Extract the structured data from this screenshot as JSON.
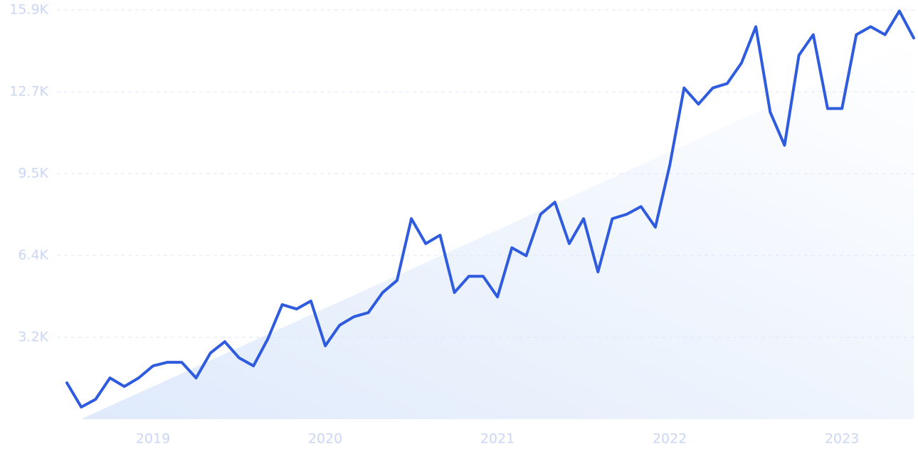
{
  "chart_data": {
    "type": "line",
    "categories": [
      null,
      null,
      null,
      null,
      null,
      null,
      "2019",
      null,
      null,
      null,
      null,
      null,
      null,
      null,
      null,
      null,
      null,
      null,
      "2020",
      null,
      null,
      null,
      null,
      null,
      null,
      null,
      null,
      null,
      null,
      null,
      "2021",
      null,
      null,
      null,
      null,
      null,
      null,
      null,
      null,
      null,
      null,
      null,
      "2022",
      null,
      null,
      null,
      null,
      null,
      null,
      null,
      null,
      null,
      null,
      null,
      "2023",
      null,
      null,
      null,
      null,
      null
    ],
    "series": [
      {
        "color": "#2f5bde",
        "values": [
          1410,
          470,
          770,
          1600,
          1270,
          1600,
          2070,
          2210,
          2210,
          1600,
          2570,
          3010,
          2380,
          2070,
          3120,
          4450,
          4280,
          4590,
          2850,
          3650,
          3980,
          4140,
          4920,
          5390,
          7790,
          6820,
          7150,
          4920,
          5550,
          5550,
          4750,
          6660,
          6350,
          7960,
          8430,
          6820,
          7790,
          5720,
          7790,
          7960,
          8260,
          7460,
          9860,
          12870,
          12240,
          12870,
          13040,
          13840,
          15250,
          11930,
          10640,
          14140,
          14940,
          12070,
          12070,
          14940,
          15250,
          14940,
          15860,
          14810
        ]
      }
    ],
    "trend": {
      "color": "#e3edfc",
      "values": [
        -250,
        14700
      ]
    },
    "ylim": [
      0,
      15900
    ],
    "yticks": [
      {
        "value": 3180,
        "label": "3.2K"
      },
      {
        "value": 6360,
        "label": "6.4K"
      },
      {
        "value": 9540,
        "label": "9.5K"
      },
      {
        "value": 12720,
        "label": "12.7K"
      },
      {
        "value": 15900,
        "label": "15.9K"
      }
    ],
    "grid": true
  }
}
